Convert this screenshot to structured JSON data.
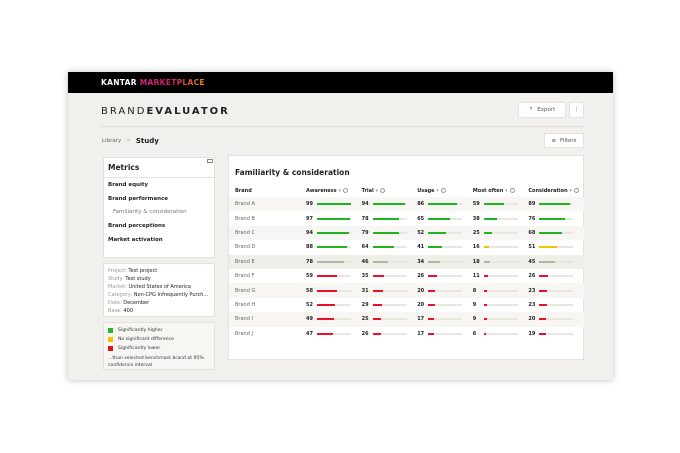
{
  "header": {
    "brand_kantar": "KANTAR",
    "brand_marketplace": "MARKETPLACE"
  },
  "app": {
    "title_light": "BRAND",
    "title_bold": "EVALUATOR",
    "export_label": "Export",
    "more_label": "⋮",
    "filters_label": "Filters"
  },
  "breadcrumb": {
    "root": "Library",
    "separator": ">",
    "current": "Study"
  },
  "sidebar": {
    "title": "Metrics",
    "items": [
      {
        "label": "Brand equity"
      },
      {
        "label": "Brand performance"
      },
      {
        "label": "Familiarity & consideration",
        "sub": true
      },
      {
        "label": "Brand perceptions"
      },
      {
        "label": "Market activation"
      }
    ]
  },
  "info": [
    {
      "label": "Project:",
      "value": "Test project"
    },
    {
      "label": "Study:",
      "value": "Test study"
    },
    {
      "label": "Market:",
      "value": "United States of America"
    },
    {
      "label": "Category:",
      "value": "Non-CPG Infrequently Purch..."
    },
    {
      "label": "Date:",
      "value": "December"
    },
    {
      "label": "Base:",
      "value": "400"
    }
  ],
  "legend": {
    "items": [
      {
        "label": "Significantly higher",
        "color": "#2db52d"
      },
      {
        "label": "No significant difference",
        "color": "#f5c400"
      },
      {
        "label": "Significantly lower",
        "color": "#e3101e"
      }
    ],
    "note": "...than selected benchmark brand at 95% confidence interval"
  },
  "colors": {
    "green": "#1fb51f",
    "yellow": "#f5c400",
    "red": "#ea1029",
    "grey": "#b5b2a8"
  },
  "table": {
    "title": "Familiarity & consideration",
    "brand_header": "Brand",
    "columns": [
      "Awareness",
      "Trial",
      "Usage",
      "Most often",
      "Consideration"
    ],
    "sort_glyph": "▾",
    "rows": [
      {
        "brand": "Brand A",
        "values": [
          99,
          94,
          86,
          59,
          89
        ],
        "sig": [
          "green",
          "green",
          "green",
          "green",
          "green"
        ]
      },
      {
        "brand": "Brand B",
        "values": [
          97,
          78,
          65,
          38,
          76
        ],
        "sig": [
          "green",
          "green",
          "green",
          "green",
          "green"
        ]
      },
      {
        "brand": "Brand C",
        "values": [
          94,
          79,
          52,
          25,
          68
        ],
        "sig": [
          "green",
          "green",
          "green",
          "green",
          "green"
        ]
      },
      {
        "brand": "Brand D",
        "values": [
          88,
          64,
          41,
          16,
          51
        ],
        "sig": [
          "green",
          "green",
          "green",
          "yellow",
          "yellow"
        ]
      },
      {
        "brand": "Brand E",
        "values": [
          78,
          46,
          34,
          18,
          45
        ],
        "sig": [
          "grey",
          "grey",
          "grey",
          "grey",
          "grey"
        ],
        "benchmark": true
      },
      {
        "brand": "Brand F",
        "values": [
          59,
          35,
          26,
          11,
          26
        ],
        "sig": [
          "red",
          "red",
          "red",
          "red",
          "red"
        ]
      },
      {
        "brand": "Brand G",
        "values": [
          58,
          31,
          20,
          8,
          23
        ],
        "sig": [
          "red",
          "red",
          "red",
          "red",
          "red"
        ]
      },
      {
        "brand": "Brand H",
        "values": [
          52,
          29,
          20,
          9,
          23
        ],
        "sig": [
          "red",
          "red",
          "red",
          "red",
          "red"
        ]
      },
      {
        "brand": "Brand I",
        "values": [
          49,
          25,
          17,
          9,
          20
        ],
        "sig": [
          "red",
          "red",
          "red",
          "red",
          "red"
        ]
      },
      {
        "brand": "Brand J",
        "values": [
          47,
          26,
          17,
          6,
          19
        ],
        "sig": [
          "red",
          "red",
          "red",
          "red",
          "red"
        ]
      }
    ]
  }
}
